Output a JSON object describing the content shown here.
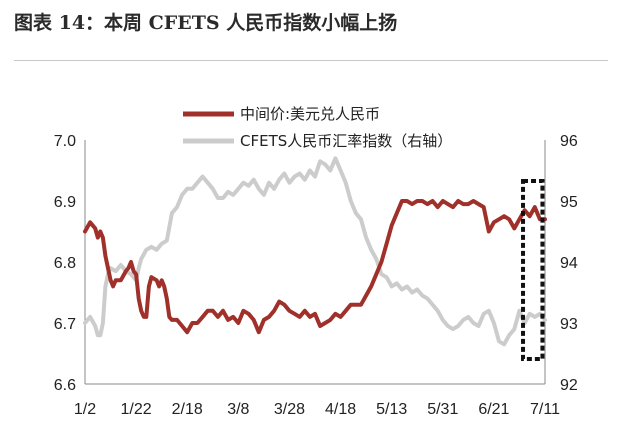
{
  "title": "图表 14：本周 CFETS 人民币指数小幅上扬",
  "chart_data": {
    "type": "line",
    "x_ticks": [
      "1/2",
      "1/22",
      "2/18",
      "3/8",
      "3/28",
      "4/18",
      "5/13",
      "5/31",
      "6/21",
      "7/11"
    ],
    "y_left": {
      "ticks": [
        "7.0",
        "6.9",
        "6.8",
        "6.7",
        "6.6"
      ],
      "lim": [
        6.6,
        7.0
      ]
    },
    "y_right": {
      "ticks": [
        "96",
        "95",
        "94",
        "93",
        "92"
      ],
      "lim": [
        92,
        96
      ]
    },
    "legend_position": "top-center",
    "grid": false,
    "highlight_box": {
      "style": "dashed",
      "x_from": 85.7,
      "x_to": 89.5
    },
    "colors": {
      "usd_cny": "#a0302a",
      "cfets": "#cccccc",
      "box": "#111111"
    },
    "series": [
      {
        "name": "中间价:美元兑人民币",
        "axis": "left",
        "points": [
          [
            0,
            6.85
          ],
          [
            1,
            6.865
          ],
          [
            2,
            6.855
          ],
          [
            2.5,
            6.84
          ],
          [
            3,
            6.85
          ],
          [
            3.5,
            6.84
          ],
          [
            4,
            6.81
          ],
          [
            5,
            6.77
          ],
          [
            5.5,
            6.76
          ],
          [
            6,
            6.77
          ],
          [
            7,
            6.77
          ],
          [
            8,
            6.785
          ],
          [
            8.5,
            6.79
          ],
          [
            9,
            6.8
          ],
          [
            9.5,
            6.785
          ],
          [
            10,
            6.78
          ],
          [
            10.5,
            6.74
          ],
          [
            11,
            6.72
          ],
          [
            11.5,
            6.71
          ],
          [
            12,
            6.71
          ],
          [
            12.5,
            6.76
          ],
          [
            13,
            6.775
          ],
          [
            14,
            6.77
          ],
          [
            14.5,
            6.76
          ],
          [
            15,
            6.77
          ],
          [
            15.5,
            6.76
          ],
          [
            16,
            6.74
          ],
          [
            16.5,
            6.71
          ],
          [
            17,
            6.705
          ],
          [
            18,
            6.705
          ],
          [
            19,
            6.695
          ],
          [
            20,
            6.685
          ],
          [
            21,
            6.7
          ],
          [
            22,
            6.7
          ],
          [
            23,
            6.71
          ],
          [
            24,
            6.72
          ],
          [
            25,
            6.72
          ],
          [
            26,
            6.71
          ],
          [
            27,
            6.72
          ],
          [
            28,
            6.705
          ],
          [
            29,
            6.71
          ],
          [
            30,
            6.7
          ],
          [
            31,
            6.72
          ],
          [
            32,
            6.715
          ],
          [
            33,
            6.705
          ],
          [
            34,
            6.685
          ],
          [
            35,
            6.705
          ],
          [
            36,
            6.71
          ],
          [
            37,
            6.72
          ],
          [
            38,
            6.735
          ],
          [
            39,
            6.73
          ],
          [
            40,
            6.72
          ],
          [
            41,
            6.715
          ],
          [
            42,
            6.71
          ],
          [
            43,
            6.72
          ],
          [
            44,
            6.71
          ],
          [
            45,
            6.715
          ],
          [
            46,
            6.695
          ],
          [
            47,
            6.7
          ],
          [
            48,
            6.705
          ],
          [
            49,
            6.715
          ],
          [
            50,
            6.71
          ],
          [
            51,
            6.72
          ],
          [
            52,
            6.73
          ],
          [
            53,
            6.73
          ],
          [
            54,
            6.73
          ],
          [
            55,
            6.745
          ],
          [
            56,
            6.76
          ],
          [
            57,
            6.78
          ],
          [
            58,
            6.8
          ],
          [
            59,
            6.83
          ],
          [
            60,
            6.86
          ],
          [
            61,
            6.88
          ],
          [
            62,
            6.9
          ],
          [
            63,
            6.9
          ],
          [
            64,
            6.895
          ],
          [
            65,
            6.9
          ],
          [
            66,
            6.9
          ],
          [
            67,
            6.895
          ],
          [
            68,
            6.9
          ],
          [
            69,
            6.89
          ],
          [
            70,
            6.9
          ],
          [
            71,
            6.895
          ],
          [
            72,
            6.89
          ],
          [
            73,
            6.9
          ],
          [
            74,
            6.895
          ],
          [
            75,
            6.895
          ],
          [
            76,
            6.9
          ],
          [
            77,
            6.895
          ],
          [
            78,
            6.89
          ],
          [
            79,
            6.85
          ],
          [
            80,
            6.865
          ],
          [
            81,
            6.87
          ],
          [
            82,
            6.875
          ],
          [
            83,
            6.87
          ],
          [
            84,
            6.855
          ],
          [
            85,
            6.87
          ],
          [
            86,
            6.885
          ],
          [
            87,
            6.875
          ],
          [
            88,
            6.89
          ],
          [
            89,
            6.87
          ],
          [
            90,
            6.87
          ]
        ]
      },
      {
        "name": "CFETS人民币汇率指数（右轴）",
        "axis": "right",
        "points": [
          [
            0,
            93
          ],
          [
            1,
            93.1
          ],
          [
            2,
            92.95
          ],
          [
            2.5,
            92.8
          ],
          [
            3,
            92.8
          ],
          [
            3.5,
            93
          ],
          [
            4,
            93.6
          ],
          [
            4.5,
            93.8
          ],
          [
            5,
            93.9
          ],
          [
            6,
            93.85
          ],
          [
            7,
            93.95
          ],
          [
            8,
            93.85
          ],
          [
            9,
            93.8
          ],
          [
            10,
            93.7
          ],
          [
            10.5,
            93.9
          ],
          [
            11,
            94.05
          ],
          [
            12,
            94.2
          ],
          [
            13,
            94.25
          ],
          [
            14,
            94.2
          ],
          [
            15,
            94.3
          ],
          [
            16,
            94.35
          ],
          [
            17,
            94.8
          ],
          [
            18,
            94.9
          ],
          [
            19,
            95.1
          ],
          [
            20,
            95.2
          ],
          [
            21,
            95.2
          ],
          [
            22,
            95.3
          ],
          [
            23,
            95.4
          ],
          [
            24,
            95.3
          ],
          [
            25,
            95.2
          ],
          [
            26,
            95.05
          ],
          [
            27,
            95.05
          ],
          [
            28,
            95.15
          ],
          [
            29,
            95.1
          ],
          [
            30,
            95.2
          ],
          [
            31,
            95.3
          ],
          [
            32,
            95.25
          ],
          [
            33,
            95.35
          ],
          [
            34,
            95.2
          ],
          [
            35,
            95.1
          ],
          [
            36,
            95.3
          ],
          [
            37,
            95.2
          ],
          [
            38,
            95.35
          ],
          [
            39,
            95.45
          ],
          [
            40,
            95.3
          ],
          [
            41,
            95.4
          ],
          [
            42,
            95.45
          ],
          [
            43,
            95.35
          ],
          [
            44,
            95.5
          ],
          [
            45,
            95.4
          ],
          [
            46,
            95.65
          ],
          [
            47,
            95.6
          ],
          [
            48,
            95.5
          ],
          [
            49,
            95.7
          ],
          [
            50,
            95.5
          ],
          [
            51,
            95.3
          ],
          [
            52,
            95
          ],
          [
            53,
            94.8
          ],
          [
            54,
            94.7
          ],
          [
            55,
            94.4
          ],
          [
            56,
            94.2
          ],
          [
            57,
            94.05
          ],
          [
            58,
            93.8
          ],
          [
            59,
            93.75
          ],
          [
            60,
            93.6
          ],
          [
            61,
            93.65
          ],
          [
            62,
            93.55
          ],
          [
            63,
            93.6
          ],
          [
            64,
            93.5
          ],
          [
            65,
            93.55
          ],
          [
            66,
            93.45
          ],
          [
            67,
            93.4
          ],
          [
            68,
            93.3
          ],
          [
            69,
            93.2
          ],
          [
            70,
            93.05
          ],
          [
            71,
            92.95
          ],
          [
            72,
            92.9
          ],
          [
            73,
            92.95
          ],
          [
            74,
            93.05
          ],
          [
            75,
            93.1
          ],
          [
            76,
            93
          ],
          [
            77,
            92.95
          ],
          [
            78,
            93.15
          ],
          [
            79,
            93.2
          ],
          [
            80,
            93
          ],
          [
            81,
            92.7
          ],
          [
            82,
            92.65
          ],
          [
            83,
            92.8
          ],
          [
            84,
            92.9
          ],
          [
            85,
            93.2
          ],
          [
            86,
            93
          ],
          [
            87,
            93.15
          ],
          [
            88,
            93.1
          ],
          [
            89,
            93.15
          ],
          [
            90,
            93.05
          ]
        ]
      }
    ]
  }
}
